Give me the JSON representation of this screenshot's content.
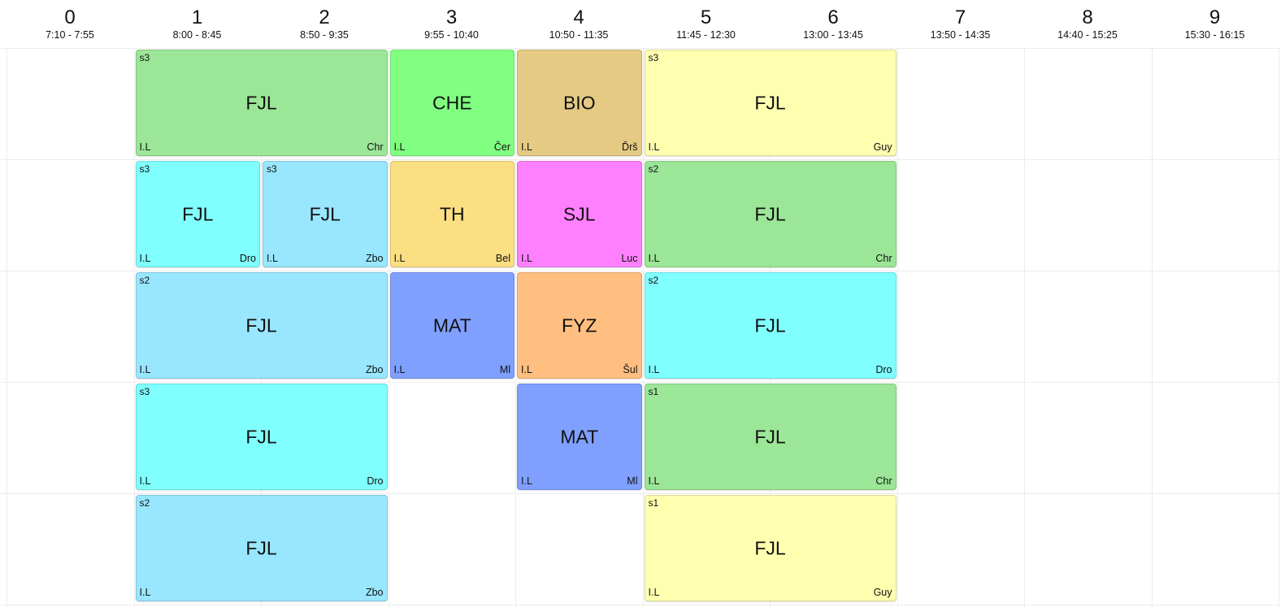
{
  "colors": {
    "green": "#9be697",
    "bright_green": "#80ff80",
    "tan": "#e4ca83",
    "yellow": "#ffffb0",
    "cyan": "#80ffff",
    "light_blue": "#99e6ff",
    "orange_yellow": "#fbdf83",
    "pink": "#ff80ff",
    "blue": "#80a0ff",
    "orange": "#ffbf80"
  },
  "periods": [
    {
      "num": "0",
      "time": "7:10 - 7:55"
    },
    {
      "num": "1",
      "time": "8:00 - 8:45"
    },
    {
      "num": "2",
      "time": "8:50 - 9:35"
    },
    {
      "num": "3",
      "time": "9:55 - 10:40"
    },
    {
      "num": "4",
      "time": "10:50 - 11:35"
    },
    {
      "num": "5",
      "time": "11:45 - 12:30"
    },
    {
      "num": "6",
      "time": "13:00 - 13:45"
    },
    {
      "num": "7",
      "time": "13:50 - 14:35"
    },
    {
      "num": "8",
      "time": "14:40 - 15:25"
    },
    {
      "num": "9",
      "time": "15:30 - 16:15"
    }
  ],
  "lessons": [
    {
      "day": 0,
      "start": 1,
      "span": 2,
      "subject": "FJL",
      "group": "s3",
      "class": "I.L",
      "teacher": "Chr",
      "color": "green"
    },
    {
      "day": 0,
      "start": 3,
      "span": 1,
      "subject": "CHE",
      "group": "",
      "class": "I.L",
      "teacher": "Čer",
      "color": "bright_green"
    },
    {
      "day": 0,
      "start": 4,
      "span": 1,
      "subject": "BIO",
      "group": "",
      "class": "I.L",
      "teacher": "Ďrš",
      "color": "tan"
    },
    {
      "day": 0,
      "start": 5,
      "span": 2,
      "subject": "FJL",
      "group": "s3",
      "class": "I.L",
      "teacher": "Guy",
      "color": "yellow"
    },
    {
      "day": 1,
      "start": 1,
      "span": 1,
      "subject": "FJL",
      "group": "s3",
      "class": "I.L",
      "teacher": "Dro",
      "color": "cyan"
    },
    {
      "day": 1,
      "start": 2,
      "span": 1,
      "subject": "FJL",
      "group": "s3",
      "class": "I.L",
      "teacher": "Zbo",
      "color": "light_blue"
    },
    {
      "day": 1,
      "start": 3,
      "span": 1,
      "subject": "TH",
      "group": "",
      "class": "I.L",
      "teacher": "Bel",
      "color": "orange_yellow"
    },
    {
      "day": 1,
      "start": 4,
      "span": 1,
      "subject": "SJL",
      "group": "",
      "class": "I.L",
      "teacher": "Luc",
      "color": "pink"
    },
    {
      "day": 1,
      "start": 5,
      "span": 2,
      "subject": "FJL",
      "group": "s2",
      "class": "I.L",
      "teacher": "Chr",
      "color": "green"
    },
    {
      "day": 2,
      "start": 1,
      "span": 2,
      "subject": "FJL",
      "group": "s2",
      "class": "I.L",
      "teacher": "Zbo",
      "color": "light_blue"
    },
    {
      "day": 2,
      "start": 3,
      "span": 1,
      "subject": "MAT",
      "group": "",
      "class": "I.L",
      "teacher": "Ml",
      "color": "blue"
    },
    {
      "day": 2,
      "start": 4,
      "span": 1,
      "subject": "FYZ",
      "group": "",
      "class": "I.L",
      "teacher": "Šul",
      "color": "orange"
    },
    {
      "day": 2,
      "start": 5,
      "span": 2,
      "subject": "FJL",
      "group": "s2",
      "class": "I.L",
      "teacher": "Dro",
      "color": "cyan"
    },
    {
      "day": 3,
      "start": 1,
      "span": 2,
      "subject": "FJL",
      "group": "s3",
      "class": "I.L",
      "teacher": "Dro",
      "color": "cyan"
    },
    {
      "day": 3,
      "start": 4,
      "span": 1,
      "subject": "MAT",
      "group": "",
      "class": "I.L",
      "teacher": "Ml",
      "color": "blue"
    },
    {
      "day": 3,
      "start": 5,
      "span": 2,
      "subject": "FJL",
      "group": "s1",
      "class": "I.L",
      "teacher": "Chr",
      "color": "green"
    },
    {
      "day": 4,
      "start": 1,
      "span": 2,
      "subject": "FJL",
      "group": "s2",
      "class": "I.L",
      "teacher": "Zbo",
      "color": "light_blue"
    },
    {
      "day": 4,
      "start": 5,
      "span": 2,
      "subject": "FJL",
      "group": "s1",
      "class": "I.L",
      "teacher": "Guy",
      "color": "yellow"
    }
  ]
}
